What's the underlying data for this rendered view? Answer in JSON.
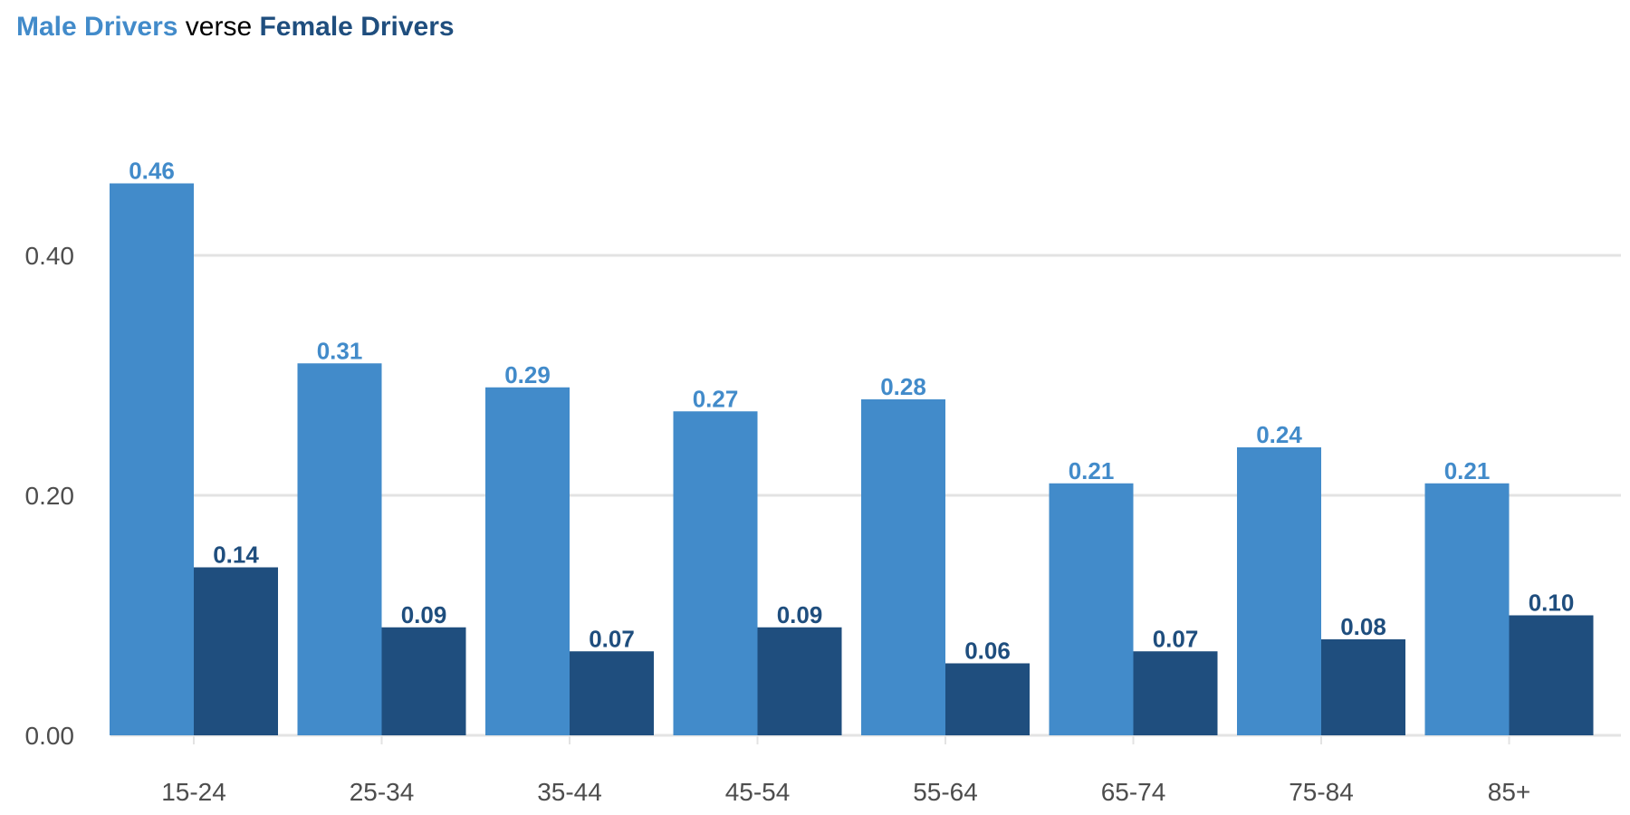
{
  "title": {
    "male": "Male Drivers",
    "sep": " verse ",
    "female": "Female Drivers"
  },
  "colors": {
    "male": "#428BCA",
    "female": "#1F4E7E",
    "grid": "#e3e3e3",
    "tick_text": "#4d4d4d"
  },
  "chart_data": {
    "type": "bar",
    "title": "Male Drivers verse Female Drivers",
    "xlabel": "",
    "ylabel": "",
    "ylim": [
      0,
      0.5
    ],
    "yticks": [
      0.0,
      0.2,
      0.4
    ],
    "ytick_labels": [
      "0.00",
      "0.20",
      "0.40"
    ],
    "grid": "horizontal",
    "legend": "none (series colors shown in title)",
    "categories": [
      "15-24",
      "25-34",
      "35-44",
      "45-54",
      "55-64",
      "65-74",
      "75-84",
      "85+"
    ],
    "series": [
      {
        "name": "Male Drivers",
        "values": [
          0.46,
          0.31,
          0.29,
          0.27,
          0.28,
          0.21,
          0.24,
          0.21
        ],
        "labels": [
          "0.46",
          "0.31",
          "0.29",
          "0.27",
          "0.28",
          "0.21",
          "0.24",
          "0.21"
        ]
      },
      {
        "name": "Female Drivers",
        "values": [
          0.14,
          0.09,
          0.07,
          0.09,
          0.06,
          0.07,
          0.08,
          0.1
        ],
        "labels": [
          "0.14",
          "0.09",
          "0.07",
          "0.09",
          "0.06",
          "0.07",
          "0.08",
          "0.10"
        ]
      }
    ]
  }
}
